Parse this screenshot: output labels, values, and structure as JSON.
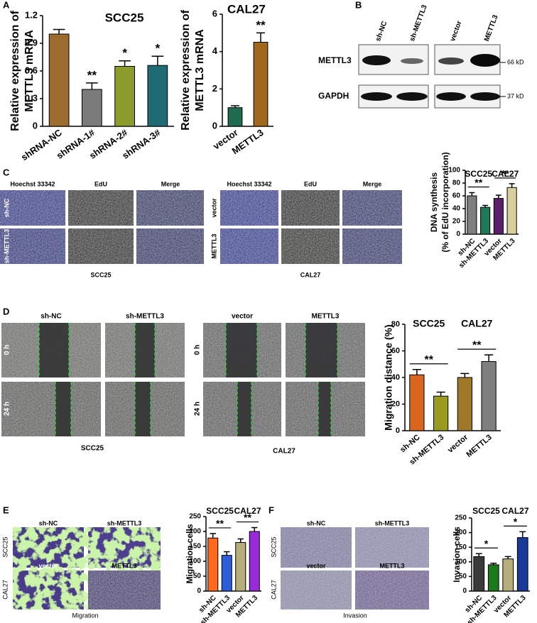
{
  "chart_data": [
    {
      "type": "bar",
      "title": "SCC25",
      "ylabel": [
        "Relative expression of",
        "METTL3 mRNA"
      ],
      "categories": [
        "shRNA-NC",
        "shRNA-1#",
        "shRNA-2#",
        "shRNA-3#"
      ],
      "values": [
        1.0,
        0.4,
        0.65,
        0.66
      ],
      "errors": [
        0.05,
        0.07,
        0.06,
        0.1
      ],
      "colors": [
        "#9c6b2e",
        "#7a7a7a",
        "#8c9a2a",
        "#1f6b73"
      ],
      "ylim": [
        0,
        1.2
      ],
      "yticks": [
        0,
        0.3,
        0.6,
        0.9,
        1.2
      ],
      "annotations": [
        {
          "index": 1,
          "label": "**"
        },
        {
          "index": 2,
          "label": "*"
        },
        {
          "index": 3,
          "label": "*"
        }
      ]
    },
    {
      "type": "bar",
      "title": "CAL27",
      "ylabel": [
        "Relative expression of",
        "METTL3 mRNA"
      ],
      "categories": [
        "vector",
        "METTL3"
      ],
      "values": [
        1.0,
        4.5
      ],
      "errors": [
        0.1,
        0.5
      ],
      "colors": [
        "#1f6b4f",
        "#a0671f"
      ],
      "ylim": [
        0,
        6
      ],
      "yticks": [
        0,
        2,
        4,
        6
      ],
      "annotations": [
        {
          "index": 1,
          "label": "**"
        }
      ]
    },
    {
      "type": "bar",
      "ylabel": [
        "DNA synthesis",
        "(% of EdU incorporation)"
      ],
      "categories": [
        "sh-NC",
        "sh-METTL3",
        "vector",
        "METTL3"
      ],
      "values": [
        60,
        42,
        56,
        73
      ],
      "errors": [
        5,
        3,
        5,
        6
      ],
      "colors": [
        "#7f7f7f",
        "#1f7a5a",
        "#5a1f6b",
        "#d8cf9c"
      ],
      "ylim": [
        0,
        100
      ],
      "yticks": [
        0,
        20,
        40,
        60,
        80,
        100
      ],
      "groups": [
        {
          "label": "SCC25",
          "span": [
            0,
            1
          ]
        },
        {
          "label": "CAL27",
          "span": [
            2,
            3
          ]
        }
      ],
      "comparisons": [
        {
          "pair": [
            0,
            1
          ],
          "label": "**"
        },
        {
          "pair": [
            2,
            3
          ],
          "label": "**"
        }
      ]
    },
    {
      "type": "bar",
      "ylabel": [
        "Migration distance (%)"
      ],
      "categories": [
        "sh-NC",
        "sh-METTL3",
        "vector",
        "METTL3"
      ],
      "values": [
        42,
        26,
        40,
        52
      ],
      "errors": [
        4,
        3,
        3,
        5
      ],
      "colors": [
        "#d9661f",
        "#9a9a1f",
        "#a0782a",
        "#7f7f7f"
      ],
      "ylim": [
        0,
        80
      ],
      "yticks": [
        0,
        20,
        40,
        60,
        80
      ],
      "groups": [
        {
          "label": "SCC25",
          "span": [
            0,
            1
          ]
        },
        {
          "label": "CAL27",
          "span": [
            2,
            3
          ]
        }
      ],
      "comparisons": [
        {
          "pair": [
            0,
            1
          ],
          "label": "**"
        },
        {
          "pair": [
            2,
            3
          ],
          "label": "**"
        }
      ]
    },
    {
      "type": "bar",
      "ylabel": [
        "Migration cells"
      ],
      "categories": [
        "sh-NC",
        "sh-METTL3",
        "vector",
        "METTL3"
      ],
      "values": [
        178,
        120,
        163,
        200
      ],
      "errors": [
        15,
        12,
        12,
        13
      ],
      "colors": [
        "#ff6a1f",
        "#2a5fd9",
        "#b5ad7a",
        "#9a2ad9"
      ],
      "ylim": [
        0,
        250
      ],
      "yticks": [
        0,
        50,
        100,
        150,
        200,
        250
      ],
      "groups": [
        {
          "label": "SCC25",
          "span": [
            0,
            1
          ]
        },
        {
          "label": "CAL27",
          "span": [
            2,
            3
          ]
        }
      ],
      "comparisons": [
        {
          "pair": [
            0,
            1
          ],
          "label": "**"
        },
        {
          "pair": [
            2,
            3
          ],
          "label": "**"
        }
      ]
    },
    {
      "type": "bar",
      "ylabel": [
        "Invasion cells"
      ],
      "categories": [
        "sh-NC",
        "sh-METTL3",
        "vector",
        "METTL3"
      ],
      "values": [
        118,
        90,
        110,
        183
      ],
      "errors": [
        10,
        5,
        8,
        20
      ],
      "colors": [
        "#3a3a3a",
        "#1a7a1a",
        "#b5ad7a",
        "#1a3a9a"
      ],
      "ylim": [
        0,
        250
      ],
      "yticks": [
        0,
        50,
        100,
        150,
        200,
        250
      ],
      "groups": [
        {
          "label": "SCC25",
          "span": [
            0,
            1
          ]
        },
        {
          "label": "CAL27",
          "span": [
            2,
            3
          ]
        }
      ],
      "comparisons": [
        {
          "pair": [
            0,
            1
          ],
          "label": "*"
        },
        {
          "pair": [
            2,
            3
          ],
          "label": "*"
        }
      ]
    }
  ],
  "figure": {
    "panel_labels": [
      "A",
      "B",
      "C",
      "D",
      "E",
      "F"
    ],
    "blot": {
      "lanes": [
        "sh-NC",
        "sh-METTL3",
        "vector",
        "METTL3"
      ],
      "rows": [
        "METTL3",
        "GAPDH"
      ],
      "sizes": [
        "66 kD",
        "37 kD"
      ]
    },
    "edu": {
      "channels": [
        "Hoechst 33342",
        "EdU",
        "Merge"
      ],
      "rows_left": [
        "sh-NC",
        "sh-METTL3"
      ],
      "rows_right": [
        "vector",
        "METTL3"
      ],
      "captions": [
        "SCC25",
        "CAL27"
      ]
    },
    "wound": {
      "cols_left": [
        "sh-NC",
        "sh-METTL3"
      ],
      "cols_right": [
        "vector",
        "METTL3"
      ],
      "times": [
        "0 h",
        "24 h"
      ],
      "captions": [
        "SCC25",
        "CAL27"
      ]
    },
    "transwell": {
      "cols_top": [
        "sh-NC",
        "sh-METTL3"
      ],
      "cols_bottom": [
        "vector",
        "METTL3"
      ],
      "rows": [
        "SCC25",
        "CAL27"
      ],
      "captions": [
        "Migration",
        "Invasion"
      ]
    }
  }
}
